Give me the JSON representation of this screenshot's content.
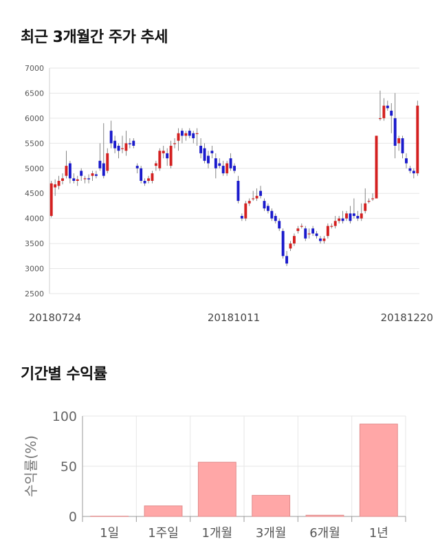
{
  "sections": {
    "price_title": "최근 3개월간 주가 추세",
    "return_title": "기간별 수익률"
  },
  "colors": {
    "up": "#d42020",
    "down": "#1a1acc",
    "bar": "#ffa7a7",
    "bar_edge": "#e08a8a",
    "grid": "#e6e6e6"
  },
  "chart_data": [
    {
      "type": "candlestick",
      "title": "최근 3개월간 주가 추세",
      "ylim": [
        2500,
        7000
      ],
      "yticks": [
        2500,
        3000,
        3500,
        4000,
        4500,
        5000,
        5500,
        6000,
        6500,
        7000
      ],
      "x_labels": [
        "20180724",
        "20181011",
        "20181220"
      ],
      "grid": "horizontal",
      "candles": [
        [
          4050,
          4700,
          4750,
          4020
        ],
        [
          4620,
          4680,
          4780,
          4450
        ],
        [
          4650,
          4750,
          4850,
          4580
        ],
        [
          4750,
          4800,
          4900,
          4680
        ],
        [
          4850,
          5050,
          5350,
          4800
        ],
        [
          5100,
          4800,
          5150,
          4700
        ],
        [
          4800,
          4750,
          4900,
          4700
        ],
        [
          4750,
          4780,
          4850,
          4650
        ],
        [
          4950,
          4850,
          5000,
          4750
        ],
        [
          4800,
          4800,
          4850,
          4700
        ],
        [
          4800,
          4780,
          4880,
          4700
        ],
        [
          4850,
          4900,
          4950,
          4750
        ],
        [
          4880,
          4850,
          4950,
          4800
        ],
        [
          5150,
          5000,
          5500,
          4950
        ],
        [
          5100,
          4850,
          5900,
          4800
        ],
        [
          4950,
          5300,
          5400,
          4900
        ],
        [
          5750,
          5500,
          5950,
          5400
        ],
        [
          5550,
          5400,
          5650,
          5300
        ],
        [
          5450,
          5350,
          5500,
          5200
        ],
        [
          5400,
          5400,
          5650,
          5300
        ],
        [
          5350,
          5500,
          5750,
          5250
        ],
        [
          5500,
          5480,
          5600,
          5400
        ],
        [
          5550,
          5450,
          5600,
          5400
        ],
        [
          5050,
          5000,
          5100,
          4900
        ],
        [
          5000,
          4750,
          5050,
          4700
        ],
        [
          4750,
          4700,
          4800,
          4650
        ],
        [
          4750,
          4800,
          4850,
          4700
        ],
        [
          4750,
          4900,
          4950,
          4700
        ],
        [
          5050,
          5100,
          5150,
          4950
        ],
        [
          5000,
          5350,
          5400,
          4950
        ],
        [
          5300,
          5350,
          5450,
          5200
        ],
        [
          5300,
          5200,
          5400,
          5050
        ],
        [
          5050,
          5450,
          5550,
          5000
        ],
        [
          5500,
          5500,
          5600,
          5400
        ],
        [
          5550,
          5700,
          5800,
          5350
        ],
        [
          5750,
          5650,
          5800,
          5500
        ],
        [
          5650,
          5700,
          5750,
          5550
        ],
        [
          5750,
          5650,
          5800,
          5600
        ],
        [
          5700,
          5600,
          5750,
          5500
        ],
        [
          5700,
          5700,
          5800,
          5450
        ],
        [
          5450,
          5300,
          5600,
          5200
        ],
        [
          5400,
          5150,
          5500,
          5100
        ],
        [
          5250,
          5100,
          5350,
          5000
        ],
        [
          5350,
          5300,
          5450,
          5200
        ],
        [
          5200,
          5000,
          5300,
          4800
        ],
        [
          5100,
          5050,
          5200,
          5000
        ],
        [
          5050,
          4900,
          5150,
          4850
        ],
        [
          4900,
          5100,
          5150,
          4850
        ],
        [
          5200,
          5000,
          5300,
          4950
        ],
        [
          5050,
          4950,
          5100,
          4900
        ],
        [
          4750,
          4350,
          4850,
          4300
        ],
        [
          4050,
          4000,
          4100,
          3950
        ],
        [
          4000,
          4300,
          4350,
          3950
        ],
        [
          4300,
          4350,
          4400,
          4250
        ],
        [
          4400,
          4400,
          4550,
          4350
        ],
        [
          4400,
          4450,
          4600,
          4350
        ],
        [
          4550,
          4450,
          4650,
          4400
        ],
        [
          4350,
          4200,
          4400,
          4150
        ],
        [
          4250,
          4150,
          4300,
          4100
        ],
        [
          4150,
          4000,
          4200,
          3950
        ],
        [
          4050,
          3950,
          4100,
          3900
        ],
        [
          3950,
          3800,
          4000,
          3750
        ],
        [
          3750,
          3250,
          3800,
          3200
        ],
        [
          3250,
          3100,
          3350,
          3050
        ],
        [
          3400,
          3500,
          3550,
          3350
        ],
        [
          3500,
          3650,
          3700,
          3450
        ],
        [
          3750,
          3800,
          3850,
          3700
        ],
        [
          3850,
          3850,
          3900,
          3800
        ],
        [
          3800,
          3600,
          3850,
          3550
        ],
        [
          3700,
          3700,
          3800,
          3600
        ],
        [
          3800,
          3700,
          3850,
          3650
        ],
        [
          3700,
          3650,
          3750,
          3600
        ],
        [
          3600,
          3550,
          3650,
          3500
        ],
        [
          3550,
          3600,
          3650,
          3500
        ],
        [
          3650,
          3850,
          3900,
          3600
        ],
        [
          3850,
          3850,
          3900,
          3800
        ],
        [
          3850,
          3950,
          4050,
          3800
        ],
        [
          3950,
          4000,
          4050,
          3900
        ],
        [
          4000,
          3950,
          4150,
          3900
        ],
        [
          4000,
          4100,
          4150,
          3950
        ],
        [
          4100,
          3950,
          4250,
          3900
        ],
        [
          4100,
          4050,
          4400,
          4000
        ],
        [
          4050,
          4000,
          4150,
          3950
        ],
        [
          4000,
          4100,
          4300,
          3950
        ],
        [
          4150,
          4300,
          4600,
          4100
        ],
        [
          4350,
          4350,
          4400,
          4300
        ],
        [
          4400,
          4400,
          4500,
          4350
        ],
        [
          4400,
          5650,
          5650,
          4400
        ],
        [
          6000,
          6000,
          6550,
          5950
        ],
        [
          6000,
          6250,
          6400,
          5950
        ],
        [
          6250,
          6200,
          6350,
          6150
        ],
        [
          6150,
          6050,
          6300,
          5700
        ],
        [
          6000,
          5450,
          6500,
          5200
        ],
        [
          5500,
          5600,
          5650,
          5350
        ],
        [
          5600,
          5300,
          5650,
          5200
        ],
        [
          5200,
          5100,
          5300,
          5000
        ],
        [
          5000,
          4950,
          5050,
          4900
        ],
        [
          4950,
          4900,
          5000,
          4800
        ],
        [
          4900,
          6250,
          6350,
          4850
        ]
      ]
    },
    {
      "type": "bar",
      "title": "기간별 수익률",
      "categories": [
        "1일",
        "1주일",
        "1개월",
        "3개월",
        "6개월",
        "1년"
      ],
      "values": [
        0.3,
        10.5,
        54,
        21,
        1.2,
        92
      ],
      "ylabel": "수익률(%)",
      "ylim": [
        0,
        100
      ],
      "yticks": [
        0,
        50,
        100
      ],
      "grid": true
    }
  ]
}
